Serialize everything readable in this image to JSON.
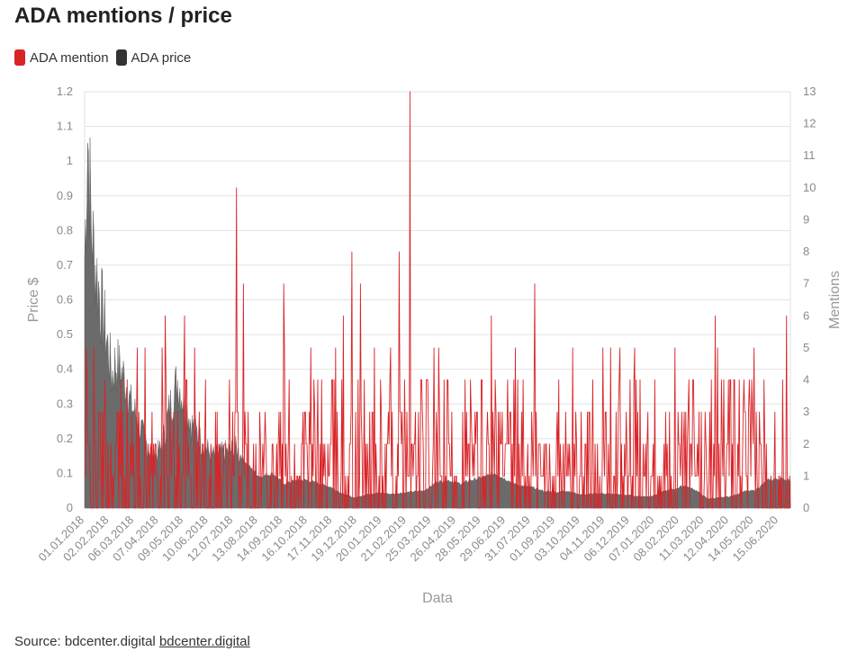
{
  "title": "ADA mentions / price",
  "legend": [
    {
      "label": "ADA mention",
      "color": "#d92327"
    },
    {
      "label": "ADA price",
      "color": "#333333"
    }
  ],
  "source": {
    "prefix": "Source: bdcenter.digital",
    "link_text": "bdcenter.digital"
  },
  "chart_data": {
    "type": "area+line",
    "xlabel": "Data",
    "ylabel_left": "Price $",
    "ylabel_right": "Mentions",
    "ylim_left": [
      0,
      1.2
    ],
    "ylim_right": [
      0,
      13
    ],
    "left_ticks": [
      "0",
      "0.1",
      "0.2",
      "0.3",
      "0.4",
      "0.5",
      "0.6",
      "0.7",
      "0.8",
      "0.9",
      "1",
      "1.1",
      "1.2"
    ],
    "right_ticks": [
      "0",
      "1",
      "2",
      "3",
      "4",
      "5",
      "6",
      "7",
      "8",
      "9",
      "10",
      "11",
      "12",
      "13"
    ],
    "x_tick_labels": [
      "01.01.2018",
      "02.02.2018",
      "06.03.2018",
      "07.04.2018",
      "09.05.2018",
      "10.06.2018",
      "12.07.2018",
      "13.08.2018",
      "14.09.2018",
      "16.10.2018",
      "17.11.2018",
      "19.12.2018",
      "20.01.2019",
      "21.02.2019",
      "25.03.2019",
      "26.04.2019",
      "28.05.2019",
      "29.06.2019",
      "31.07.2019",
      "01.09.2019",
      "03.10.2019",
      "04.11.2019",
      "06.12.2019",
      "07.01.2020",
      "08.02.2020",
      "11.03.2020",
      "12.04.2020",
      "14.05.2020",
      "15.06.2020"
    ],
    "x_range": [
      "01.01.2018",
      "30.06.2020"
    ],
    "series": [
      {
        "name": "ADA price",
        "axis": "left",
        "color": "#666666",
        "points": [
          [
            "01.01.2018",
            0.72
          ],
          [
            "05.01.2018",
            1.08
          ],
          [
            "10.01.2018",
            0.8
          ],
          [
            "15.01.2018",
            0.7
          ],
          [
            "20.01.2018",
            0.62
          ],
          [
            "25.01.2018",
            0.55
          ],
          [
            "01.02.2018",
            0.45
          ],
          [
            "05.02.2018",
            0.38
          ],
          [
            "10.02.2018",
            0.42
          ],
          [
            "15.02.2018",
            0.4
          ],
          [
            "20.02.2018",
            0.38
          ],
          [
            "25.02.2018",
            0.35
          ],
          [
            "01.03.2018",
            0.3
          ],
          [
            "10.03.2018",
            0.26
          ],
          [
            "20.03.2018",
            0.19
          ],
          [
            "01.04.2018",
            0.15
          ],
          [
            "10.04.2018",
            0.17
          ],
          [
            "20.04.2018",
            0.28
          ],
          [
            "01.05.2018",
            0.37
          ],
          [
            "10.05.2018",
            0.3
          ],
          [
            "20.05.2018",
            0.24
          ],
          [
            "01.06.2018",
            0.19
          ],
          [
            "15.06.2018",
            0.15
          ],
          [
            "01.07.2018",
            0.16
          ],
          [
            "15.07.2018",
            0.17
          ],
          [
            "01.08.2018",
            0.12
          ],
          [
            "15.08.2018",
            0.09
          ],
          [
            "01.09.2018",
            0.1
          ],
          [
            "15.09.2018",
            0.07
          ],
          [
            "01.10.2018",
            0.08
          ],
          [
            "15.10.2018",
            0.08
          ],
          [
            "01.11.2018",
            0.07
          ],
          [
            "15.11.2018",
            0.06
          ],
          [
            "01.12.2018",
            0.04
          ],
          [
            "15.12.2018",
            0.03
          ],
          [
            "01.01.2019",
            0.04
          ],
          [
            "15.01.2019",
            0.044
          ],
          [
            "01.02.2019",
            0.04
          ],
          [
            "15.02.2019",
            0.044
          ],
          [
            "01.03.2019",
            0.047
          ],
          [
            "15.03.2019",
            0.05
          ],
          [
            "01.04.2019",
            0.075
          ],
          [
            "15.04.2019",
            0.08
          ],
          [
            "01.05.2019",
            0.07
          ],
          [
            "15.05.2019",
            0.08
          ],
          [
            "01.06.2019",
            0.09
          ],
          [
            "15.06.2019",
            0.1
          ],
          [
            "01.07.2019",
            0.08
          ],
          [
            "15.07.2019",
            0.065
          ],
          [
            "01.08.2019",
            0.06
          ],
          [
            "15.08.2019",
            0.05
          ],
          [
            "01.09.2019",
            0.045
          ],
          [
            "15.09.2019",
            0.05
          ],
          [
            "01.10.2019",
            0.04
          ],
          [
            "15.10.2019",
            0.04
          ],
          [
            "01.11.2019",
            0.042
          ],
          [
            "15.11.2019",
            0.04
          ],
          [
            "01.12.2019",
            0.038
          ],
          [
            "15.12.2019",
            0.034
          ],
          [
            "01.01.2020",
            0.033
          ],
          [
            "15.01.2020",
            0.046
          ],
          [
            "01.02.2020",
            0.055
          ],
          [
            "15.02.2020",
            0.065
          ],
          [
            "01.03.2020",
            0.05
          ],
          [
            "15.03.2020",
            0.027
          ],
          [
            "01.04.2020",
            0.03
          ],
          [
            "15.04.2020",
            0.034
          ],
          [
            "01.05.2020",
            0.048
          ],
          [
            "15.05.2020",
            0.05
          ],
          [
            "01.06.2020",
            0.08
          ],
          [
            "15.06.2020",
            0.085
          ],
          [
            "30.06.2020",
            0.08
          ]
        ]
      },
      {
        "name": "ADA mention",
        "axis": "right",
        "color": "#d92327",
        "peaks": [
          [
            "03.01.2018",
            5
          ],
          [
            "15.04.2018",
            6
          ],
          [
            "10.05.2018",
            6
          ],
          [
            "16.07.2018",
            10
          ],
          [
            "25.07.2018",
            7
          ],
          [
            "15.09.2018",
            7
          ],
          [
            "01.12.2018",
            6
          ],
          [
            "12.12.2018",
            8
          ],
          [
            "23.12.2018",
            7
          ],
          [
            "11.02.2019",
            8
          ],
          [
            "25.02.2019",
            13
          ],
          [
            "10.06.2019",
            6
          ],
          [
            "05.08.2019",
            7
          ],
          [
            "25.03.2020",
            6
          ],
          [
            "25.06.2020",
            6
          ]
        ],
        "typical_range": [
          0,
          5
        ]
      }
    ]
  }
}
